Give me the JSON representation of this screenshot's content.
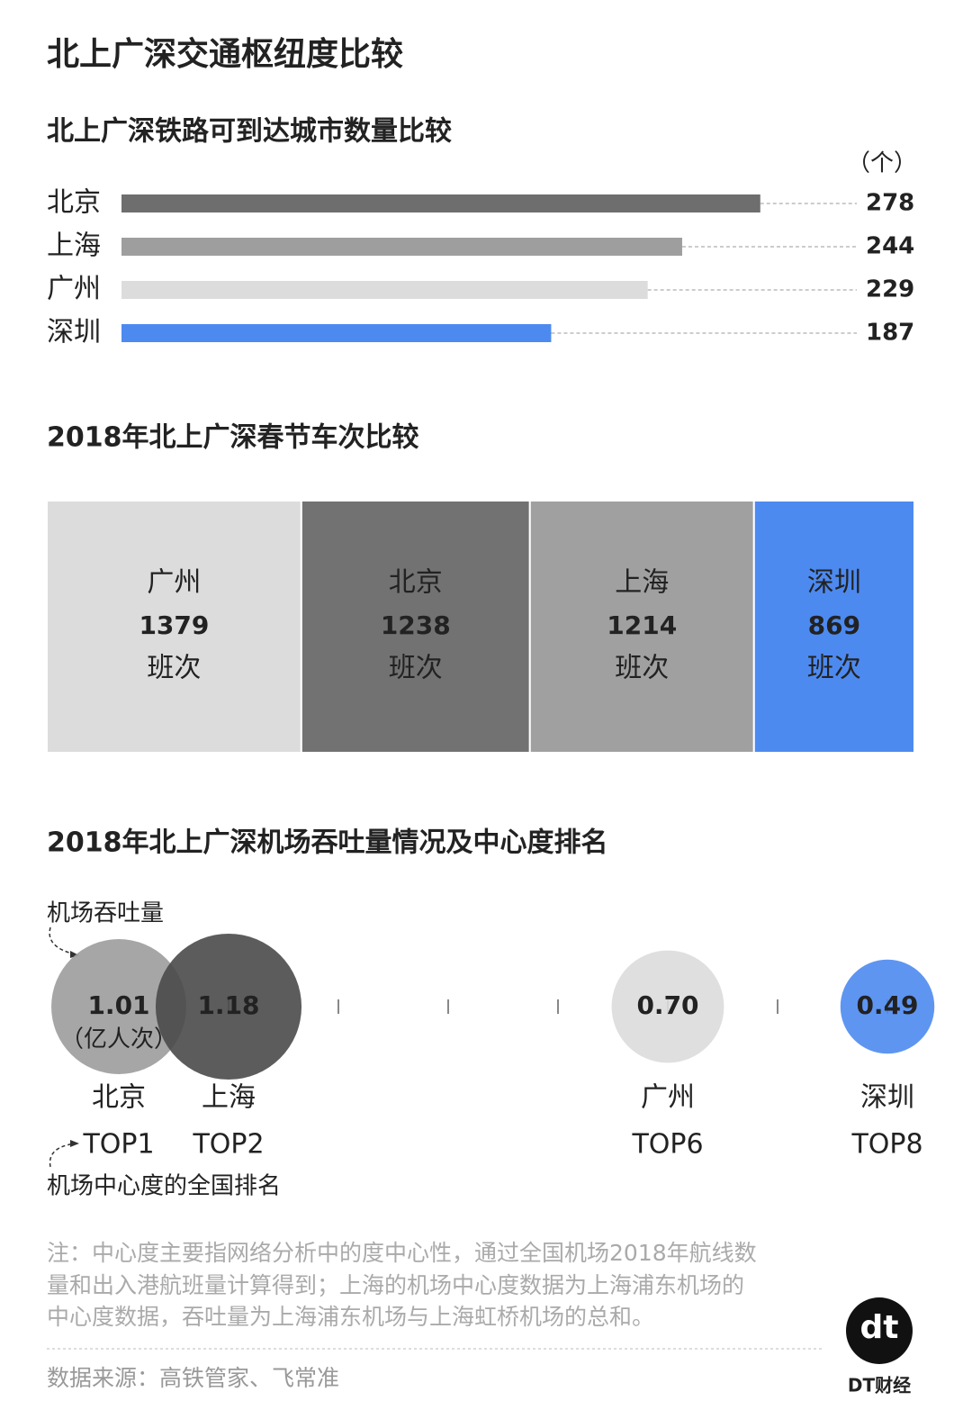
{
  "title": "北上广深交通枢纽度比较",
  "chart_data": [
    {
      "type": "bar",
      "title": "北上广深铁路可到达城市数量比较",
      "unit": "（个）",
      "categories": [
        "北京",
        "上海",
        "广州",
        "深圳"
      ],
      "values": [
        278,
        244,
        229,
        187
      ],
      "colors": [
        "#6e6e6e",
        "#9e9e9e",
        "#dcdcdc",
        "#4d8af0"
      ],
      "xlim": [
        0,
        320
      ]
    },
    {
      "type": "strip",
      "title": "2018年北上广深春节车次比较",
      "unit": "班次",
      "categories": [
        "广州",
        "北京",
        "上海",
        "深圳"
      ],
      "values": [
        1379,
        1238,
        1214,
        869
      ],
      "colors": [
        "#dcdcdc",
        "#727272",
        "#a0a0a0",
        "#4d8af0"
      ]
    },
    {
      "type": "bubble",
      "title": "2018年北上广深机场吞吐量情况及中心度排名",
      "size_label": "机场吞吐量",
      "unit": "（亿人次）",
      "x_label": "机场中心度的全国排名",
      "categories": [
        "北京",
        "上海",
        "广州",
        "深圳"
      ],
      "x": [
        1,
        2,
        6,
        8
      ],
      "rank_labels": [
        "TOP1",
        "TOP2",
        "TOP6",
        "TOP8"
      ],
      "values": [
        1.01,
        1.18,
        0.7,
        0.49
      ],
      "value_labels": [
        "1.01",
        "1.18",
        "0.70",
        "0.49"
      ],
      "colors": [
        "#9c9c9c",
        "#4a4a4a",
        "#dcdcdc",
        "#4d8af0"
      ],
      "xlim": [
        0.5,
        8.5
      ],
      "xticks": [
        1,
        2,
        3,
        4,
        5,
        6,
        7,
        8
      ]
    }
  ],
  "note": [
    "注：中心度主要指网络分析中的度中心性，通过全国机场2018年航线数",
    "量和出入港航班量计算得到；上海的机场中心度数据为上海浦东机场的",
    "中心度数据，吞吐量为上海浦东机场与上海虹桥机场的总和。"
  ],
  "source": "数据来源：高铁管家、飞常准",
  "logo": {
    "mark": "dt",
    "name": "DT财经"
  }
}
